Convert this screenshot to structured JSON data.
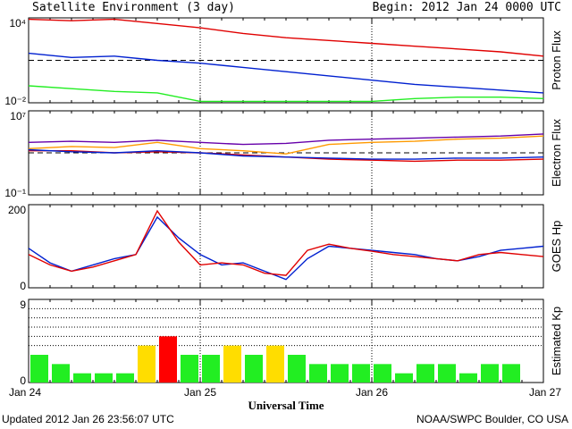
{
  "header": {
    "title": "Satellite Environment (3 day)",
    "begin": "Begin:  2012 Jan 24 0000 UTC"
  },
  "footer": {
    "updated": "Updated 2012 Jan 26 23:56:07 UTC",
    "credit": "NOAA/SWPC Boulder, CO USA"
  },
  "colors": {
    "red": "#e00000",
    "blue": "#0020d0",
    "green": "#22ee22",
    "orange": "#ff9900",
    "purple": "#6600aa",
    "yellow": "#ffdd00",
    "kp_red": "#ff0000"
  },
  "chart_data": [
    {
      "type": "line",
      "ylabel": "Proton Flux",
      "ytick_labels": [
        "10⁴",
        "10⁻²"
      ],
      "ylim_log10": [
        -2,
        4
      ],
      "threshold_log10": 1,
      "x": [
        "Jan 24 00",
        "Jan 24 06",
        "Jan 24 12",
        "Jan 24 18",
        "Jan 25 00",
        "Jan 25 06",
        "Jan 25 12",
        "Jan 25 18",
        "Jan 26 00",
        "Jan 26 06",
        "Jan 26 12",
        "Jan 26 18",
        "Jan 27 00"
      ],
      "series": [
        {
          "color": "red",
          "log10_values": [
            3.9,
            3.8,
            3.9,
            3.6,
            3.3,
            2.9,
            2.6,
            2.4,
            2.2,
            2.0,
            1.8,
            1.6,
            1.3
          ]
        },
        {
          "color": "blue",
          "log10_values": [
            1.5,
            1.2,
            1.3,
            1.0,
            0.8,
            0.5,
            0.2,
            -0.1,
            -0.4,
            -0.7,
            -0.9,
            -1.1,
            -1.3
          ]
        },
        {
          "color": "green",
          "log10_values": [
            -0.8,
            -1.0,
            -1.2,
            -1.3,
            -1.9,
            -1.9,
            -1.9,
            -1.9,
            -1.9,
            -1.7,
            -1.6,
            -1.6,
            -1.7
          ]
        }
      ]
    },
    {
      "type": "line",
      "ylabel": "Electron Flux",
      "ytick_labels": [
        "10⁷",
        "10⁻¹"
      ],
      "ylim_log10": [
        -1,
        7
      ],
      "threshold_log10": 3,
      "x": [
        "Jan 24 00",
        "Jan 24 06",
        "Jan 24 12",
        "Jan 24 18",
        "Jan 25 00",
        "Jan 25 06",
        "Jan 25 12",
        "Jan 25 18",
        "Jan 26 00",
        "Jan 26 06",
        "Jan 26 12",
        "Jan 26 18",
        "Jan 27 00"
      ],
      "series": [
        {
          "color": "purple",
          "log10_values": [
            4.0,
            4.1,
            4.0,
            4.2,
            4.0,
            3.8,
            3.9,
            4.2,
            4.3,
            4.4,
            4.5,
            4.6,
            4.8
          ]
        },
        {
          "color": "orange",
          "log10_values": [
            3.4,
            3.6,
            3.5,
            4.0,
            3.4,
            3.2,
            2.9,
            3.8,
            4.0,
            4.1,
            4.3,
            4.4,
            4.6
          ]
        },
        {
          "color": "red",
          "log10_values": [
            3.2,
            3.2,
            3.0,
            3.1,
            3.0,
            2.8,
            2.6,
            2.4,
            2.3,
            2.2,
            2.3,
            2.3,
            2.4
          ]
        },
        {
          "color": "blue",
          "log10_values": [
            3.3,
            3.1,
            3.0,
            3.2,
            3.0,
            2.7,
            2.6,
            2.5,
            2.4,
            2.4,
            2.5,
            2.5,
            2.6
          ]
        }
      ]
    },
    {
      "type": "line",
      "ylabel": "GOES Hp",
      "ytick_labels": [
        "200",
        "0"
      ],
      "ylim": [
        0,
        200
      ],
      "x": [
        "Jan 24 00",
        "Jan 24 03",
        "Jan 24 06",
        "Jan 24 09",
        "Jan 24 12",
        "Jan 24 15",
        "Jan 24 18",
        "Jan 24 21",
        "Jan 25 00",
        "Jan 25 03",
        "Jan 25 06",
        "Jan 25 09",
        "Jan 25 12",
        "Jan 25 15",
        "Jan 25 18",
        "Jan 25 21",
        "Jan 26 00",
        "Jan 26 03",
        "Jan 26 06",
        "Jan 26 09",
        "Jan 26 12",
        "Jan 26 15",
        "Jan 26 18",
        "Jan 26 21",
        "Jan 27 00"
      ],
      "series": [
        {
          "color": "blue",
          "values": [
            95,
            60,
            40,
            55,
            70,
            80,
            170,
            120,
            80,
            55,
            60,
            40,
            20,
            70,
            100,
            95,
            90,
            85,
            80,
            70,
            65,
            75,
            90,
            95,
            100
          ]
        },
        {
          "color": "red",
          "values": [
            80,
            55,
            40,
            50,
            65,
            80,
            185,
            110,
            55,
            60,
            55,
            35,
            30,
            90,
            105,
            95,
            88,
            80,
            75,
            70,
            65,
            80,
            85,
            80,
            75
          ]
        }
      ]
    },
    {
      "type": "bar",
      "ylabel": "Estimated Kp",
      "ytick_labels": [
        "9",
        "0"
      ],
      "ylim": [
        0,
        9
      ],
      "xlabel": "Universal Time",
      "xtick_labels": [
        "Jan 24",
        "Jan 25",
        "Jan 26",
        "Jan 27"
      ],
      "values": [
        3,
        2,
        1,
        1,
        1,
        4,
        5,
        3,
        3,
        4,
        3,
        4,
        3,
        2,
        2,
        2,
        2,
        1,
        2,
        2,
        1,
        2,
        2,
        0
      ],
      "bar_colors": [
        "green",
        "green",
        "green",
        "green",
        "green",
        "yellow",
        "kp_red",
        "green",
        "green",
        "yellow",
        "green",
        "yellow",
        "green",
        "green",
        "green",
        "green",
        "green",
        "green",
        "green",
        "green",
        "green",
        "green",
        "green",
        "green"
      ]
    }
  ]
}
